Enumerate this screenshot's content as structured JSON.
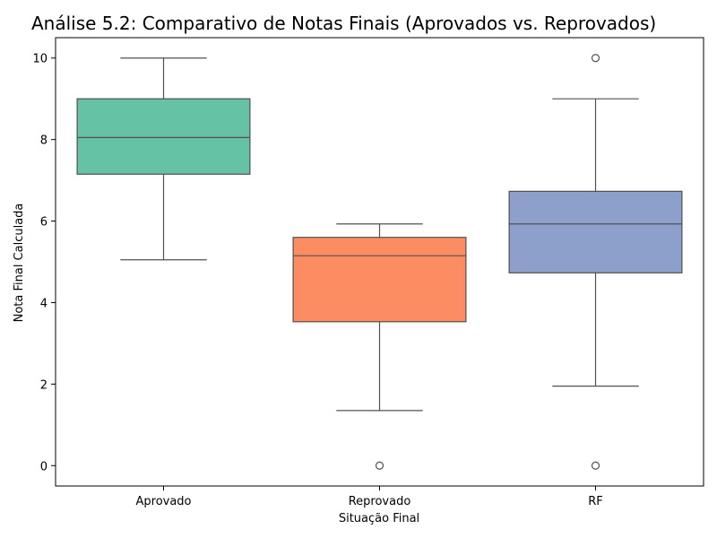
{
  "chart_data": {
    "type": "box",
    "title": "Análise 5.2: Comparativo de Notas Finais (Aprovados vs. Reprovados)",
    "xlabel": "Situação Final",
    "ylabel": "Nota Final Calculada",
    "ylim": [
      -0.5,
      10.5
    ],
    "yticks": [
      "0",
      "2",
      "4",
      "6",
      "8",
      "10"
    ],
    "grid": false,
    "categories": [
      "Aprovado",
      "Reprovado",
      "RF"
    ],
    "series": [
      {
        "name": "Aprovado",
        "whisker_low": 5.05,
        "q1": 7.15,
        "median": 8.05,
        "q3": 9.0,
        "whisker_high": 10.0,
        "outliers": [],
        "color": "#66c2a5"
      },
      {
        "name": "Reprovado",
        "whisker_low": 1.35,
        "q1": 3.53,
        "median": 5.15,
        "q3": 5.6,
        "whisker_high": 5.93,
        "outliers": [
          0.0
        ],
        "color": "#fc8d62"
      },
      {
        "name": "RF",
        "whisker_low": 1.95,
        "q1": 4.73,
        "median": 5.93,
        "q3": 6.73,
        "whisker_high": 9.0,
        "outliers": [
          0.0,
          10.0
        ],
        "color": "#8da0cb"
      }
    ]
  }
}
